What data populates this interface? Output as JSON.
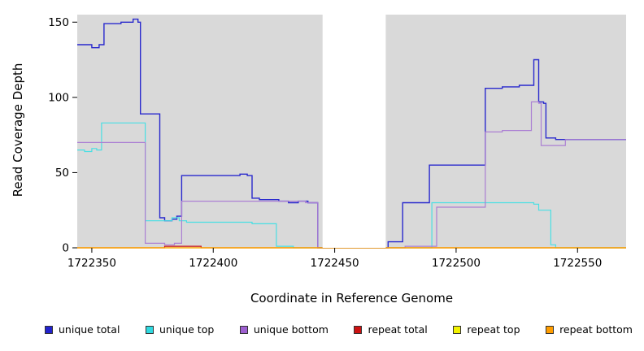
{
  "chart_data": {
    "type": "line",
    "step": true,
    "title": "",
    "xlabel": "Coordinate in Reference Genome",
    "ylabel": "Read Coverage Depth",
    "xlim": [
      1722344,
      1722570
    ],
    "ylim": [
      0,
      155
    ],
    "xticks": [
      1722350,
      1722400,
      1722450,
      1722500,
      1722550
    ],
    "yticks": [
      0,
      50,
      100,
      150
    ],
    "plot_bg": "#d9d9d9",
    "grid": false,
    "legend_position": "bottom",
    "masked_region": {
      "x0": 1722445,
      "x1": 1722471,
      "color": "#ffffff"
    },
    "series": [
      {
        "name": "unique total",
        "color": "#2929cd",
        "width": 1.4,
        "points": [
          [
            1722344,
            135
          ],
          [
            1722350,
            133
          ],
          [
            1722353,
            135
          ],
          [
            1722355,
            149
          ],
          [
            1722362,
            150
          ],
          [
            1722367,
            152
          ],
          [
            1722369,
            150
          ],
          [
            1722370,
            89
          ],
          [
            1722377,
            89
          ],
          [
            1722378,
            20
          ],
          [
            1722380,
            18
          ],
          [
            1722383,
            19
          ],
          [
            1722385,
            21
          ],
          [
            1722387,
            48
          ],
          [
            1722409,
            48
          ],
          [
            1722411,
            49
          ],
          [
            1722414,
            48
          ],
          [
            1722416,
            33
          ],
          [
            1722419,
            32
          ],
          [
            1722425,
            32
          ],
          [
            1722427,
            31
          ],
          [
            1722431,
            30
          ],
          [
            1722435,
            31
          ],
          [
            1722439,
            30
          ],
          [
            1722443,
            0
          ],
          [
            1722470,
            0
          ],
          [
            1722472,
            4
          ],
          [
            1722476,
            4
          ],
          [
            1722478,
            30
          ],
          [
            1722487,
            30
          ],
          [
            1722489,
            55
          ],
          [
            1722510,
            55
          ],
          [
            1722512,
            106
          ],
          [
            1722517,
            106
          ],
          [
            1722519,
            107
          ],
          [
            1722526,
            108
          ],
          [
            1722531,
            108
          ],
          [
            1722532,
            125
          ],
          [
            1722533,
            125
          ],
          [
            1722534,
            97
          ],
          [
            1722536,
            96
          ],
          [
            1722537,
            73
          ],
          [
            1722541,
            72
          ],
          [
            1722570,
            72
          ]
        ]
      },
      {
        "name": "unique top",
        "color": "#49dfe3",
        "width": 1.2,
        "points": [
          [
            1722344,
            65
          ],
          [
            1722347,
            64
          ],
          [
            1722350,
            66
          ],
          [
            1722352,
            65
          ],
          [
            1722354,
            83
          ],
          [
            1722371,
            83
          ],
          [
            1722372,
            18
          ],
          [
            1722381,
            18
          ],
          [
            1722383,
            20
          ],
          [
            1722386,
            18
          ],
          [
            1722389,
            17
          ],
          [
            1722413,
            17
          ],
          [
            1722416,
            16
          ],
          [
            1722424,
            16
          ],
          [
            1722426,
            1
          ],
          [
            1722431,
            1
          ],
          [
            1722433,
            0
          ],
          [
            1722470,
            0
          ],
          [
            1722488,
            0
          ],
          [
            1722490,
            30
          ],
          [
            1722530,
            30
          ],
          [
            1722532,
            29
          ],
          [
            1722534,
            25
          ],
          [
            1722537,
            25
          ],
          [
            1722539,
            2
          ],
          [
            1722541,
            0
          ],
          [
            1722570,
            0
          ]
        ]
      },
      {
        "name": "unique bottom",
        "color": "#ab7fd3",
        "width": 1.2,
        "points": [
          [
            1722344,
            70
          ],
          [
            1722371,
            70
          ],
          [
            1722372,
            3
          ],
          [
            1722378,
            3
          ],
          [
            1722380,
            2
          ],
          [
            1722384,
            3
          ],
          [
            1722387,
            31
          ],
          [
            1722412,
            31
          ],
          [
            1722419,
            31
          ],
          [
            1722438,
            30
          ],
          [
            1722443,
            0
          ],
          [
            1722470,
            0
          ],
          [
            1722477,
            0
          ],
          [
            1722479,
            1
          ],
          [
            1722490,
            1
          ],
          [
            1722492,
            27
          ],
          [
            1722510,
            27
          ],
          [
            1722512,
            77
          ],
          [
            1722519,
            78
          ],
          [
            1722529,
            78
          ],
          [
            1722531,
            97
          ],
          [
            1722534,
            96
          ],
          [
            1722535,
            68
          ],
          [
            1722543,
            68
          ],
          [
            1722545,
            72
          ],
          [
            1722570,
            72
          ]
        ]
      },
      {
        "name": "repeat total",
        "color": "#cc1111",
        "width": 1.2,
        "points": [
          [
            1722344,
            0
          ],
          [
            1722379,
            0
          ],
          [
            1722380,
            1
          ],
          [
            1722393,
            1
          ],
          [
            1722395,
            0
          ],
          [
            1722570,
            0
          ]
        ]
      },
      {
        "name": "repeat top",
        "color": "#f2f200",
        "width": 1.2,
        "points": [
          [
            1722344,
            0
          ],
          [
            1722570,
            0
          ]
        ]
      },
      {
        "name": "repeat bottom",
        "color": "#ff9d00",
        "width": 1.2,
        "points": [
          [
            1722344,
            0
          ],
          [
            1722570,
            0
          ]
        ]
      }
    ],
    "legend": [
      {
        "label": "unique total",
        "color": "#2222cd"
      },
      {
        "label": "unique top",
        "color": "#2fd9e0"
      },
      {
        "label": "unique bottom",
        "color": "#9d5fd0"
      },
      {
        "label": "repeat total",
        "color": "#cc1111"
      },
      {
        "label": "repeat top",
        "color": "#f2f200"
      },
      {
        "label": "repeat bottom",
        "color": "#ff9d00"
      }
    ]
  }
}
